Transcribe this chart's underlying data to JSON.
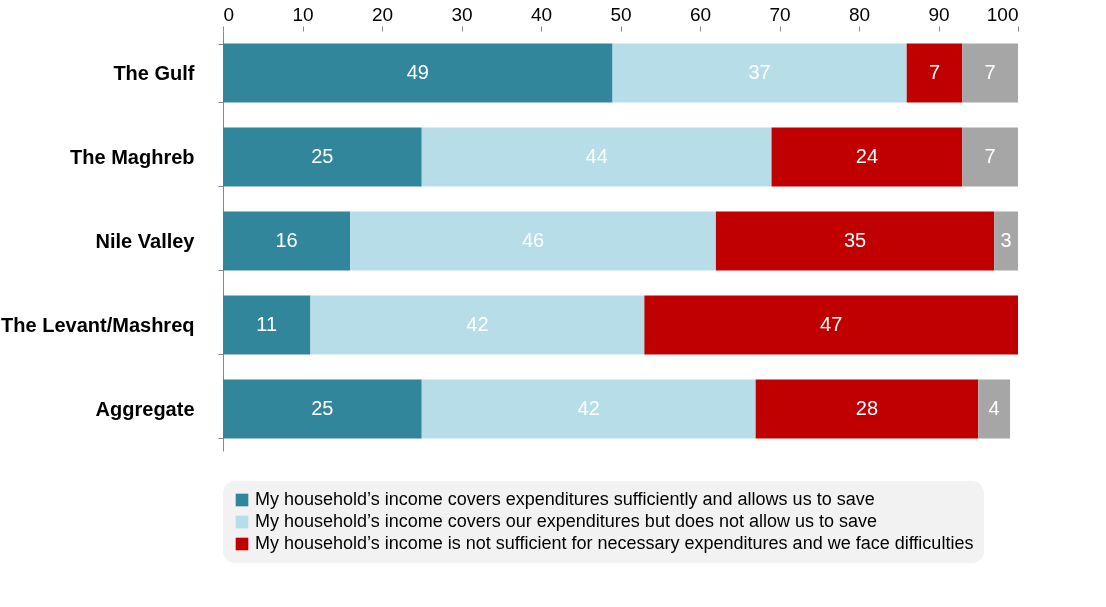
{
  "chart_data": {
    "type": "bar",
    "orientation": "horizontal",
    "stacked": true,
    "data_labels": true,
    "legend": "bottom",
    "grid": false,
    "categories": [
      "The Gulf",
      "The Maghreb",
      "Nile Valley",
      "The Levant/Mashreq",
      "Aggregate"
    ],
    "xlim": [
      0,
      100
    ],
    "xticks": [
      0,
      10,
      20,
      30,
      40,
      50,
      60,
      70,
      80,
      90,
      100
    ],
    "series": [
      {
        "name": "My household’s income covers expenditures sufficiently and allows us to save",
        "color": "#31869b",
        "values": [
          49,
          25,
          16,
          11,
          25
        ]
      },
      {
        "name": "My household’s income covers our expenditures but does not allow us to save",
        "color": "#b7dee8",
        "values": [
          37,
          44,
          46,
          42,
          42
        ]
      },
      {
        "name": "My household’s income is not sufficient for necessary expenditures and we face difficulties",
        "color": "#c00000",
        "values": [
          7,
          24,
          35,
          47,
          28
        ]
      },
      {
        "color": "#a6a6a6",
        "values": [
          7,
          7,
          3,
          null,
          4
        ]
      }
    ]
  }
}
